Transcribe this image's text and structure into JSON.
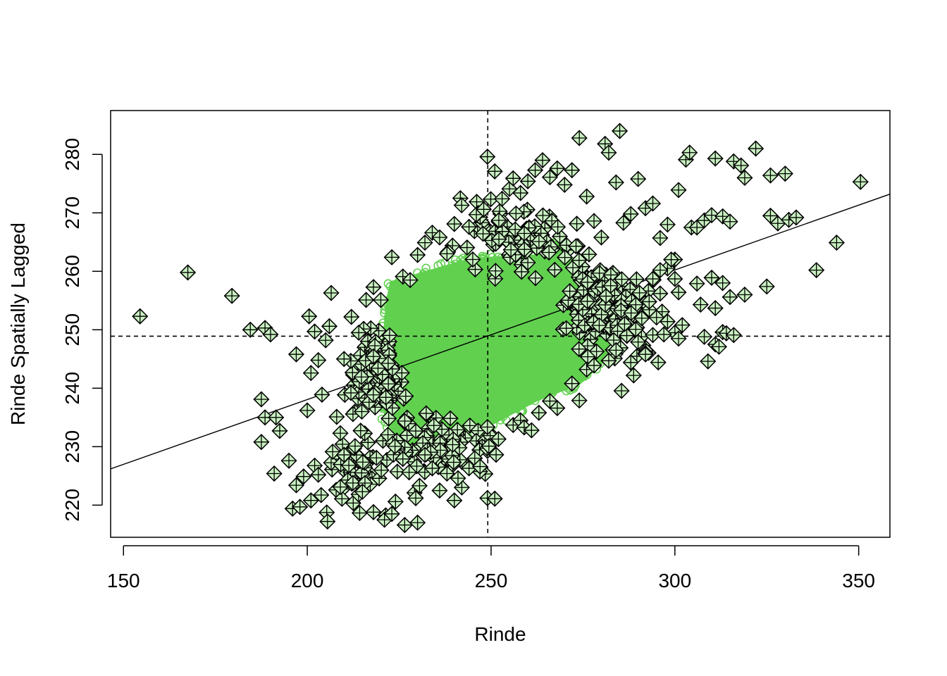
{
  "chart_data": {
    "type": "scatter",
    "title": "",
    "xlabel": "Rinde",
    "ylabel": "Rinde Spatially Lagged",
    "xlim": [
      146.5,
      358.5
    ],
    "ylim": [
      214.5,
      287.5
    ],
    "xticks": [
      150,
      200,
      250,
      300,
      350
    ],
    "yticks": [
      220,
      230,
      240,
      250,
      260,
      270,
      280
    ],
    "x_mean": 249.1,
    "y_mean": 248.9,
    "regression_line": {
      "x": [
        146.5,
        358.5
      ],
      "y": [
        226.2,
        273.2
      ]
    },
    "colors": {
      "normal_points": "#61D04F",
      "influential_fill": "#C8F0C0",
      "influential_edge": "#000000",
      "lines": "#000000"
    },
    "normal_points_cloud": {
      "description_style": "dense open circles",
      "polygon": [
        [
          223,
          258
        ],
        [
          245,
          262
        ],
        [
          262,
          262.5
        ],
        [
          268,
          265
        ],
        [
          272,
          262
        ],
        [
          276,
          258
        ],
        [
          281,
          255
        ],
        [
          284,
          250
        ],
        [
          281,
          245
        ],
        [
          274,
          241
        ],
        [
          262,
          238
        ],
        [
          250,
          234
        ],
        [
          238,
          232
        ],
        [
          228,
          230
        ],
        [
          222,
          234
        ],
        [
          220,
          240
        ],
        [
          221,
          248
        ],
        [
          222,
          255
        ]
      ]
    },
    "influential_clusters": [
      {
        "cx": 219,
        "cy": 242,
        "rx": 4,
        "ry": 4,
        "n": 160
      },
      {
        "cx": 278,
        "cy": 254,
        "rx": 4.5,
        "ry": 4,
        "n": 160
      },
      {
        "cx": 238,
        "cy": 230,
        "rx": 10,
        "ry": 3.5,
        "n": 90
      },
      {
        "cx": 255,
        "cy": 265,
        "rx": 12,
        "ry": 3.5,
        "n": 90
      },
      {
        "cx": 215,
        "cy": 226,
        "rx": 8,
        "ry": 4,
        "n": 60
      },
      {
        "cx": 287,
        "cy": 252,
        "rx": 6,
        "ry": 5,
        "n": 60
      }
    ],
    "influential_points": [
      [
        154.5,
        252.3
      ],
      [
        167.5,
        259.8
      ],
      [
        179.5,
        255.8
      ],
      [
        184.5,
        250
      ],
      [
        188.5,
        250.3
      ],
      [
        190,
        249.2
      ],
      [
        187.5,
        238.1
      ],
      [
        188.5,
        235
      ],
      [
        191.5,
        235
      ],
      [
        187.5,
        230.8
      ],
      [
        192.5,
        232.7
      ],
      [
        196,
        219.4
      ],
      [
        198,
        219.7
      ],
      [
        191,
        225.4
      ],
      [
        195,
        227.6
      ],
      [
        197,
        223.4
      ],
      [
        199,
        224.9
      ],
      [
        200,
        236.2
      ],
      [
        201,
        220.8
      ],
      [
        203,
        225.2
      ],
      [
        205.5,
        217.2
      ],
      [
        209,
        223.1
      ],
      [
        197,
        245.8
      ],
      [
        200.5,
        252.3
      ],
      [
        202,
        249.7
      ],
      [
        205,
        248.2
      ],
      [
        206.5,
        256.3
      ],
      [
        206,
        250.6
      ],
      [
        203,
        244.8
      ],
      [
        201,
        242.6
      ],
      [
        208,
        235.1
      ],
      [
        209,
        232.3
      ],
      [
        204,
        238.9
      ],
      [
        210,
        245
      ],
      [
        212,
        252.2
      ],
      [
        214,
        249.5
      ],
      [
        216,
        255.1
      ],
      [
        218,
        257.3
      ],
      [
        220,
        255.1
      ],
      [
        213,
        230.1
      ],
      [
        210,
        228.6
      ],
      [
        215,
        222.3
      ],
      [
        218,
        218.8
      ],
      [
        221,
        217.5
      ],
      [
        223,
        218.5
      ],
      [
        224,
        220.6
      ],
      [
        226.5,
        216.6
      ],
      [
        230,
        217
      ],
      [
        229.5,
        221.2
      ],
      [
        232,
        228.6
      ],
      [
        234,
        226.3
      ],
      [
        236,
        222.5
      ],
      [
        238,
        225.4
      ],
      [
        240,
        220.8
      ],
      [
        241,
        224.6
      ],
      [
        244,
        226.3
      ],
      [
        247,
        226.6
      ],
      [
        249,
        221.2
      ],
      [
        251,
        221.1
      ],
      [
        252,
        231.3
      ],
      [
        256,
        233.7
      ],
      [
        258,
        234.5
      ],
      [
        259,
        233.3
      ],
      [
        261,
        232.8
      ],
      [
        263,
        235.8
      ],
      [
        266,
        237.8
      ],
      [
        268,
        236.6
      ],
      [
        272,
        240.8
      ],
      [
        274,
        237.9
      ],
      [
        276,
        243.2
      ],
      [
        278,
        243.9
      ],
      [
        282,
        244.7
      ],
      [
        284,
        246.5
      ],
      [
        288,
        244.4
      ],
      [
        290,
        247.9
      ],
      [
        292,
        245.8
      ],
      [
        294,
        249.1
      ],
      [
        223,
        262.4
      ],
      [
        226,
        259.1
      ],
      [
        228,
        258.5
      ],
      [
        230,
        262.8
      ],
      [
        232,
        264.9
      ],
      [
        234,
        266.6
      ],
      [
        236,
        265.8
      ],
      [
        238,
        263
      ],
      [
        240,
        268.1
      ],
      [
        242,
        271.3
      ],
      [
        244,
        267.6
      ],
      [
        246,
        269.7
      ],
      [
        248,
        270.6
      ],
      [
        249,
        279.6
      ],
      [
        251,
        277.1
      ],
      [
        253,
        272.4
      ],
      [
        255,
        274.1
      ],
      [
        256,
        275.9
      ],
      [
        258,
        273.4
      ],
      [
        260,
        275.4
      ],
      [
        262,
        277.3
      ],
      [
        264,
        279
      ],
      [
        266,
        276.1
      ],
      [
        268,
        277.6
      ],
      [
        270,
        274.8
      ],
      [
        272,
        277.3
      ],
      [
        274,
        282.8
      ],
      [
        276,
        272.8
      ],
      [
        278,
        268.6
      ],
      [
        280,
        265.8
      ],
      [
        281,
        281.8
      ],
      [
        282,
        280.3
      ],
      [
        284,
        275.2
      ],
      [
        285,
        284
      ],
      [
        286,
        268.3
      ],
      [
        288,
        269.8
      ],
      [
        290,
        275.8
      ],
      [
        292,
        270.8
      ],
      [
        294,
        271.6
      ],
      [
        296,
        265.7
      ],
      [
        298,
        268
      ],
      [
        300,
        262
      ],
      [
        301,
        273.9
      ],
      [
        303,
        279.1
      ],
      [
        304,
        280.3
      ],
      [
        304.5,
        267.5
      ],
      [
        306,
        267.5
      ],
      [
        308,
        268.7
      ],
      [
        310,
        269.6
      ],
      [
        311,
        279.3
      ],
      [
        313,
        269.4
      ],
      [
        315,
        268.5
      ],
      [
        316,
        278.8
      ],
      [
        318,
        278.1
      ],
      [
        319,
        276
      ],
      [
        322,
        281
      ],
      [
        326,
        276.4
      ],
      [
        330,
        276.7
      ],
      [
        326,
        269.5
      ],
      [
        328,
        268.2
      ],
      [
        331,
        268.8
      ],
      [
        333,
        269.2
      ],
      [
        350.5,
        275.3
      ],
      [
        344,
        264.9
      ],
      [
        338.5,
        260.2
      ],
      [
        325,
        257.4
      ],
      [
        319,
        256
      ],
      [
        315,
        255.6
      ],
      [
        313,
        258
      ],
      [
        310,
        258.9
      ],
      [
        311,
        253.7
      ],
      [
        307,
        254.3
      ],
      [
        306,
        257.9
      ],
      [
        300,
        258.7
      ],
      [
        301,
        256.4
      ],
      [
        298,
        251.4
      ],
      [
        300,
        249.5
      ],
      [
        301,
        248.5
      ],
      [
        302,
        250.8
      ],
      [
        297,
        249.2
      ],
      [
        308,
        248.8
      ],
      [
        311,
        247.5
      ],
      [
        312,
        247.1
      ],
      [
        309,
        244.6
      ],
      [
        313,
        249.6
      ],
      [
        314,
        249.4
      ],
      [
        316,
        249.1
      ],
      [
        295,
        252.1
      ],
      [
        293,
        254.8
      ],
      [
        296,
        256.2
      ],
      [
        298,
        260.5
      ],
      [
        299,
        262
      ],
      [
        294,
        258.7
      ],
      [
        296,
        260.2
      ]
    ]
  }
}
